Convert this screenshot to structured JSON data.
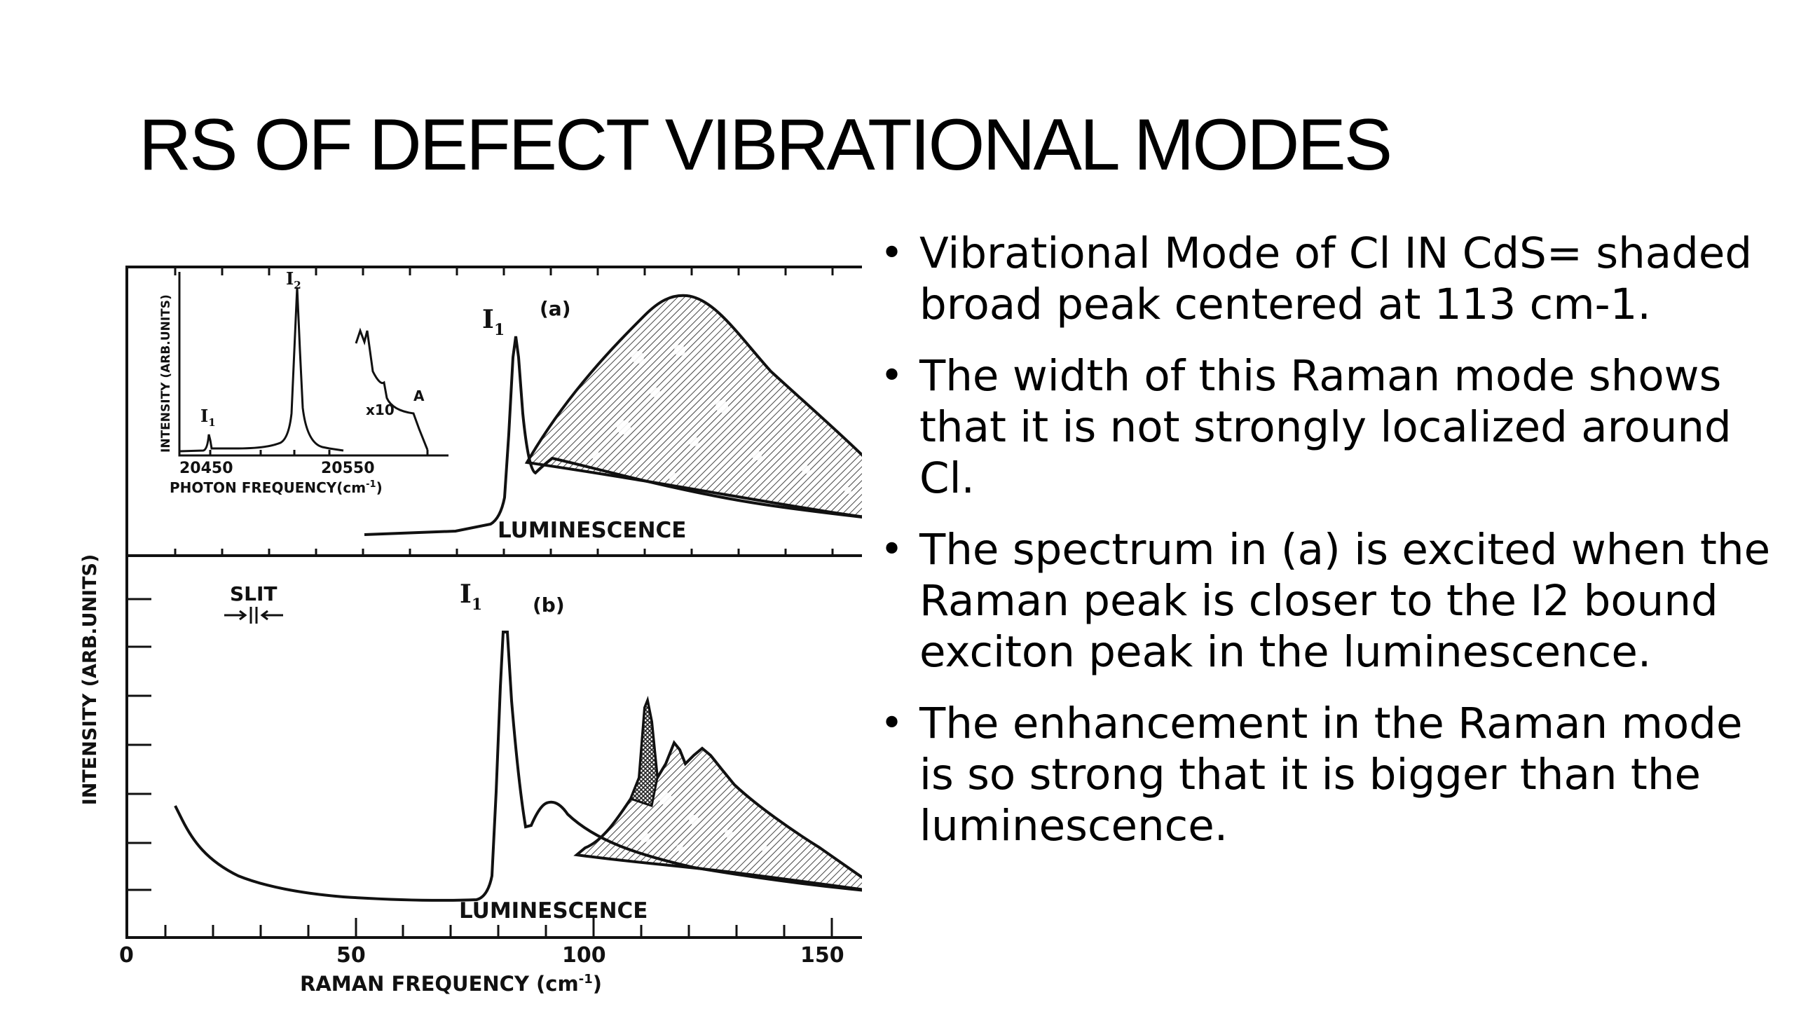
{
  "slide": {
    "title": "RS OF DEFECT VIBRATIONAL MODES",
    "bullets": [
      "Vibrational Mode of Cl IN CdS= shaded broad peak centered at 113 cm-1.",
      "The width of this Raman mode shows that it is not strongly localized around Cl.",
      "The spectrum in (a) is excited when the Raman peak is closer to the I2 bound exciton peak in the luminescence.",
      "The enhancement in the Raman mode is so strong that it is bigger than the luminescence."
    ]
  },
  "figure": {
    "y_axis_label": "INTENSITY (ARB.UNITS)",
    "x_axis_label": "RAMAN FREQUENCY (cm",
    "x_axis_exp": "-1",
    "x_axis_close": ")",
    "x_ticks": [
      "0",
      "50",
      "100",
      "150"
    ],
    "panel_a": {
      "tag": "(a)",
      "peak_label": "I",
      "peak_sub": "1",
      "band_label": "LUMINESCENCE",
      "inset": {
        "y_label": "INTENSITY (ARB.UNITS)",
        "x_label": "PHOTON  FREQUENCY(cm",
        "x_exp": "-1",
        "x_close": ")",
        "x_ticks": [
          "20450",
          "20550"
        ],
        "peak_1": "I",
        "peak_1_sub": "1",
        "peak_2": "I",
        "peak_2_sub": "2",
        "magnification": "x10",
        "point_a": "A"
      }
    },
    "panel_b": {
      "tag": "(b)",
      "peak_label": "I",
      "peak_sub": "1",
      "slit_label": "SLIT",
      "band_label": "LUMINESCENCE"
    }
  }
}
